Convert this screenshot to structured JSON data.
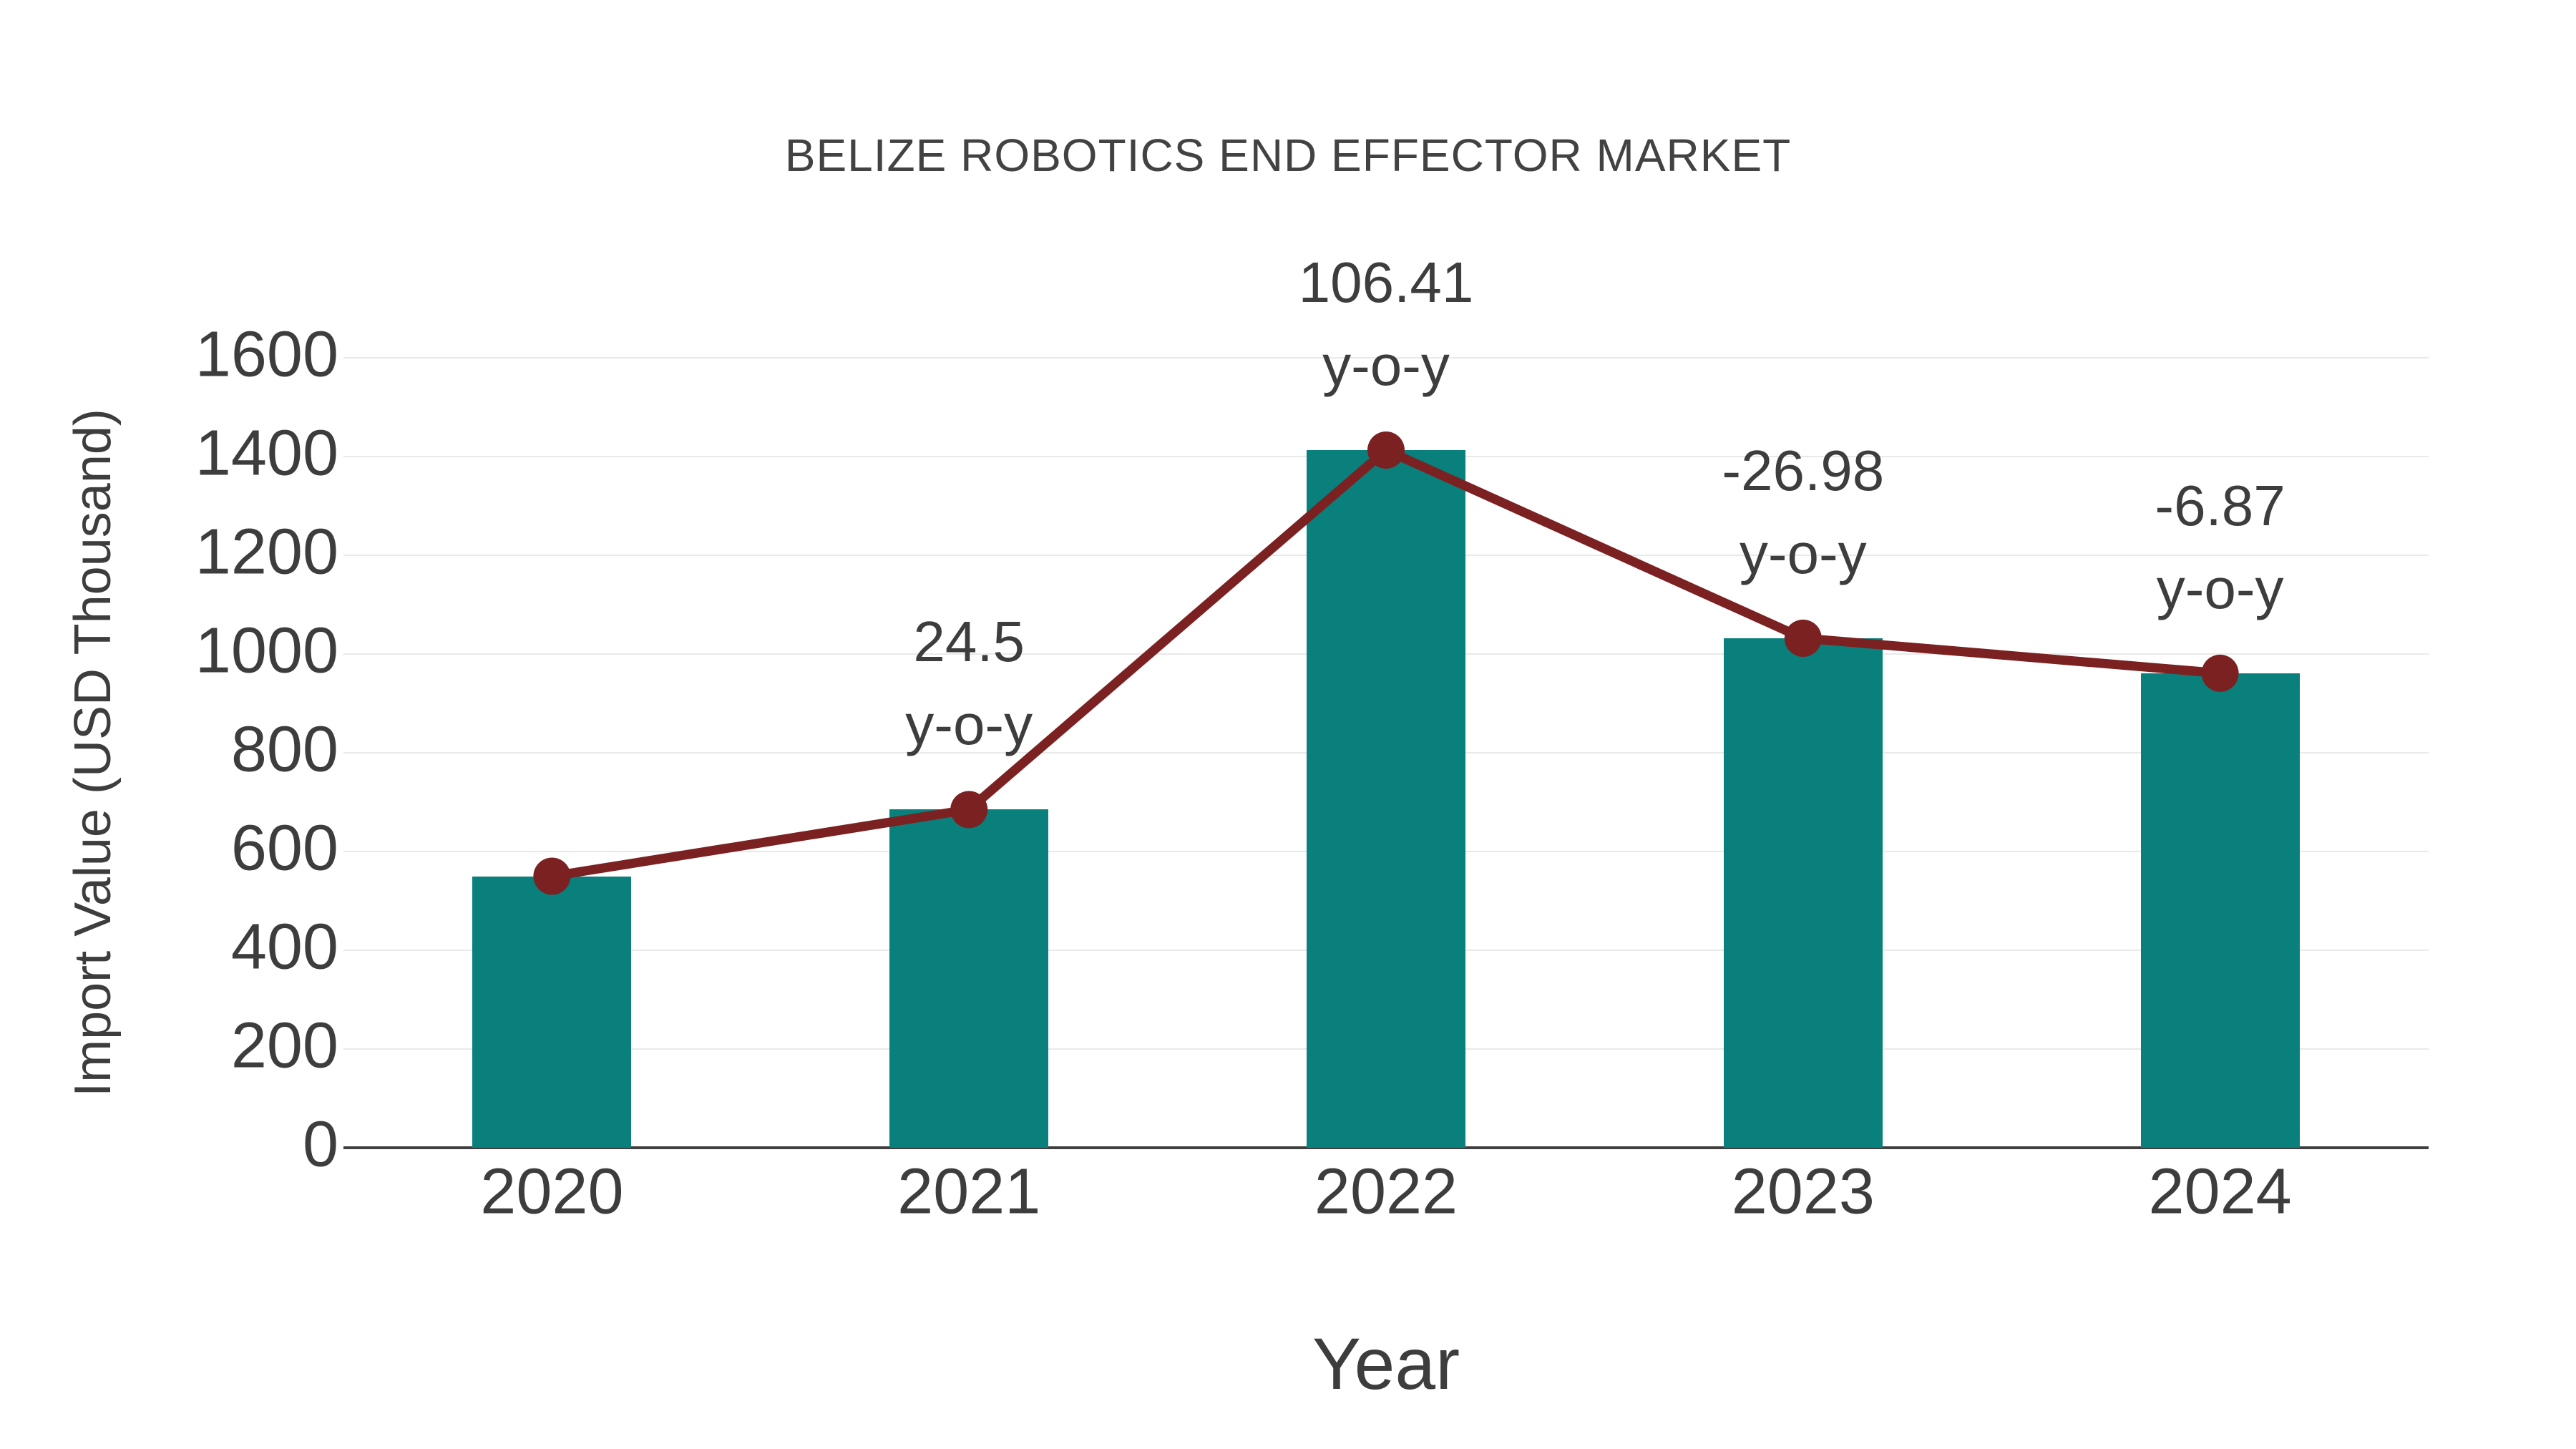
{
  "chart_data": {
    "type": "bar",
    "categories": [
      "2020",
      "2021",
      "2022",
      "2023",
      "2024"
    ],
    "series": [
      {
        "name": "Import Value bars",
        "type": "bar",
        "values": [
          550,
          685,
          1413,
          1032,
          961
        ],
        "color": "#0a807c"
      },
      {
        "name": "Import Value trend line",
        "type": "line",
        "values": [
          550,
          685,
          1413,
          1032,
          961
        ],
        "color": "#7b2121",
        "marker": "circle"
      }
    ],
    "annotations": [
      {
        "category": "2021",
        "value_label": "24.5",
        "suffix_label": "y-o-y"
      },
      {
        "category": "2022",
        "value_label": "106.41",
        "suffix_label": "y-o-y"
      },
      {
        "category": "2023",
        "value_label": "-26.98",
        "suffix_label": "y-o-y"
      },
      {
        "category": "2024",
        "value_label": "-6.87",
        "suffix_label": "y-o-y"
      }
    ],
    "title": "BELIZE ROBOTICS END EFFECTOR MARKET",
    "xlabel": "Year",
    "ylabel": "Import Value (USD Thousand)",
    "ylim": [
      0,
      1600
    ],
    "yticks": [
      0,
      200,
      400,
      600,
      800,
      1000,
      1200,
      1400,
      1600
    ],
    "grid": true,
    "legend": false,
    "colors": {
      "bar": "#0a807c",
      "line": "#7b2121",
      "tick_text": "#3d3d3d",
      "title_text": "#424242",
      "gridline": "#e9e9e9",
      "axis_line": "#3f3f3f",
      "background": "#ffffff"
    }
  }
}
